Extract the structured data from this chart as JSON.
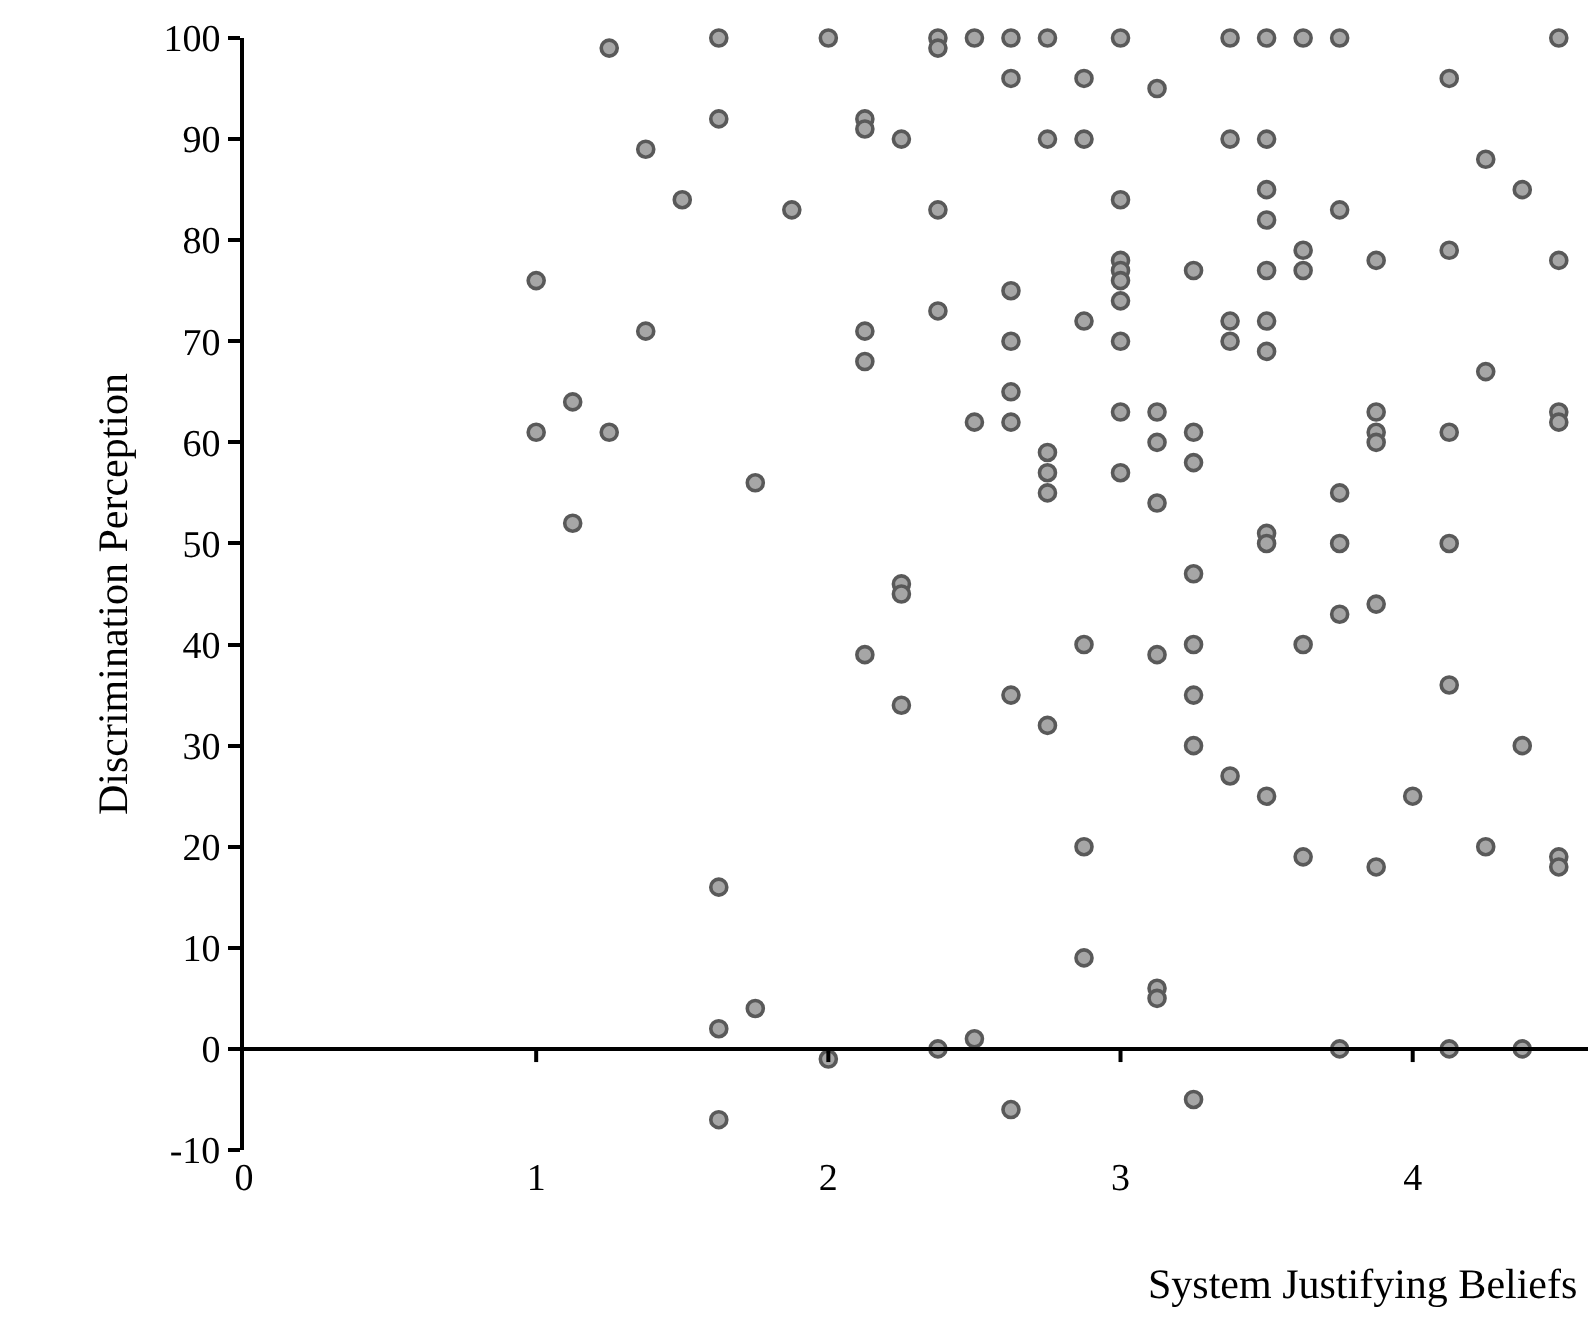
{
  "chart_data": {
    "type": "scatter",
    "xlabel": "System Justifying Beliefs",
    "ylabel": "Discrimination Perception",
    "xlim": [
      0,
      4.6
    ],
    "xticks": [
      0,
      1,
      2,
      3,
      4
    ],
    "ylim": [
      -10,
      100
    ],
    "yticks": [
      -10,
      0,
      10,
      20,
      30,
      40,
      50,
      60,
      70,
      80,
      90,
      100
    ],
    "marker": "circle",
    "series": [
      {
        "color": "#a6a6a6",
        "x": [
          1,
          1,
          1.125,
          1.125,
          1.25,
          1.25,
          1.375,
          1.375,
          1.5,
          1.625,
          1.625,
          1.625,
          1.625,
          1.625,
          1.75,
          1.75,
          1.875,
          2,
          2,
          2.125,
          2.125,
          2.125,
          2.125,
          2.125,
          2.25,
          2.25,
          2.25,
          2.25,
          2.375,
          2.375,
          2.375,
          2.375,
          2.375,
          2.5,
          2.5,
          2.5,
          2.625,
          2.625,
          2.625,
          2.625,
          2.625,
          2.625,
          2.625,
          2.625,
          2.75,
          2.75,
          2.75,
          2.75,
          2.75,
          2.75,
          2.875,
          2.875,
          2.875,
          2.875,
          2.875,
          2.875,
          3,
          3,
          3,
          3,
          3,
          3,
          3,
          3,
          3,
          3.125,
          3.125,
          3.125,
          3.125,
          3.125,
          3.125,
          3.125,
          3.25,
          3.25,
          3.25,
          3.25,
          3.25,
          3.25,
          3.25,
          3.25,
          3.375,
          3.375,
          3.375,
          3.375,
          3.375,
          3.5,
          3.5,
          3.5,
          3.5,
          3.5,
          3.5,
          3.5,
          3.5,
          3.5,
          3.5,
          3.625,
          3.625,
          3.625,
          3.625,
          3.625,
          3.75,
          3.75,
          3.75,
          3.75,
          3.75,
          3.75,
          3.875,
          3.875,
          3.875,
          3.875,
          3.875,
          3.875,
          4,
          4.125,
          4.125,
          4.125,
          4.125,
          4.125,
          4.125,
          4.25,
          4.25,
          4.25,
          4.375,
          4.375,
          4.375,
          4.5,
          4.5,
          4.5,
          4.5,
          4.5,
          4.5
        ],
        "values": [
          76,
          61,
          64,
          52,
          99,
          61,
          89,
          71,
          84,
          100,
          92,
          16,
          2,
          -7,
          56,
          4,
          83,
          100,
          -1,
          92,
          91,
          71,
          68,
          39,
          90,
          46,
          45,
          34,
          100,
          99,
          83,
          73,
          0,
          100,
          62,
          1,
          100,
          96,
          75,
          70,
          65,
          62,
          35,
          -6,
          100,
          90,
          59,
          57,
          55,
          32,
          96,
          90,
          72,
          40,
          20,
          9,
          100,
          84,
          78,
          77,
          76,
          74,
          70,
          63,
          57,
          95,
          63,
          60,
          54,
          39,
          6,
          5,
          77,
          61,
          58,
          47,
          40,
          35,
          30,
          -5,
          100,
          90,
          72,
          70,
          27,
          100,
          90,
          85,
          82,
          77,
          72,
          69,
          51,
          50,
          25,
          100,
          79,
          77,
          40,
          19,
          100,
          83,
          55,
          50,
          43,
          0,
          78,
          63,
          61,
          60,
          44,
          18,
          25,
          96,
          79,
          61,
          50,
          36,
          0,
          88,
          67,
          20,
          85,
          30,
          0,
          100,
          78,
          63,
          62,
          19,
          18
        ]
      }
    ]
  }
}
